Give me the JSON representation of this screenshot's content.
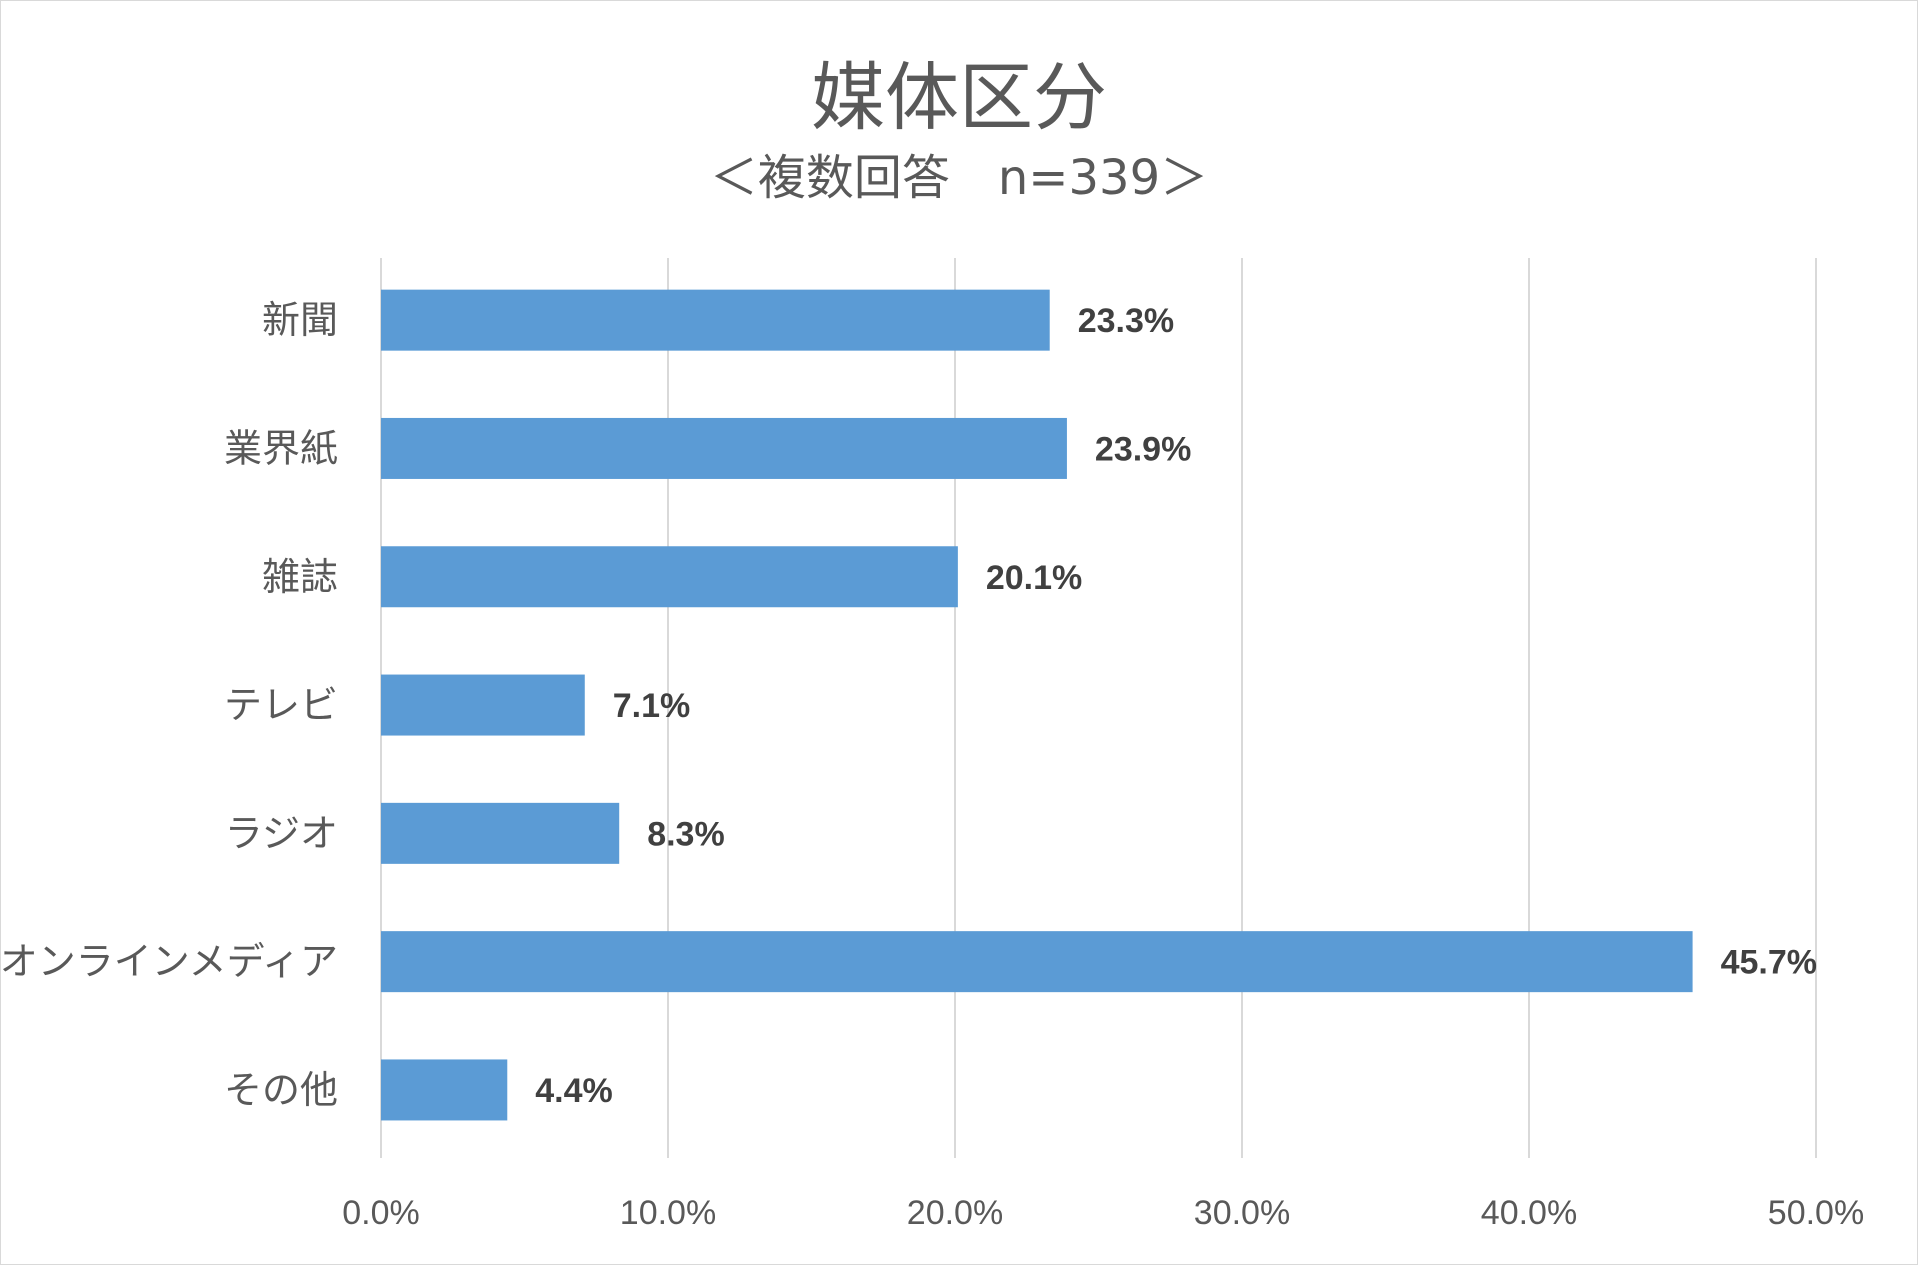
{
  "chart_data": {
    "type": "bar",
    "orientation": "horizontal",
    "title": "媒体区分",
    "subtitle": "＜複数回答　n=339＞",
    "categories": [
      "新聞",
      "業界紙",
      "雑誌",
      "テレビ",
      "ラジオ",
      "オンラインメディア",
      "その他"
    ],
    "values": [
      23.3,
      23.9,
      20.1,
      7.1,
      8.3,
      45.7,
      4.4
    ],
    "data_labels": [
      "23.3%",
      "23.9%",
      "20.1%",
      "7.1%",
      "8.3%",
      "45.7%",
      "4.4%"
    ],
    "xlim": [
      0,
      50
    ],
    "x_ticks": [
      0,
      10,
      20,
      30,
      40,
      50
    ],
    "x_tick_labels": [
      "0.0%",
      "10.0%",
      "20.0%",
      "30.0%",
      "40.0%",
      "50.0%"
    ],
    "grid": true,
    "legend": "none",
    "bar_color": "#5b9bd5",
    "grid_color": "#d9d9d9"
  }
}
